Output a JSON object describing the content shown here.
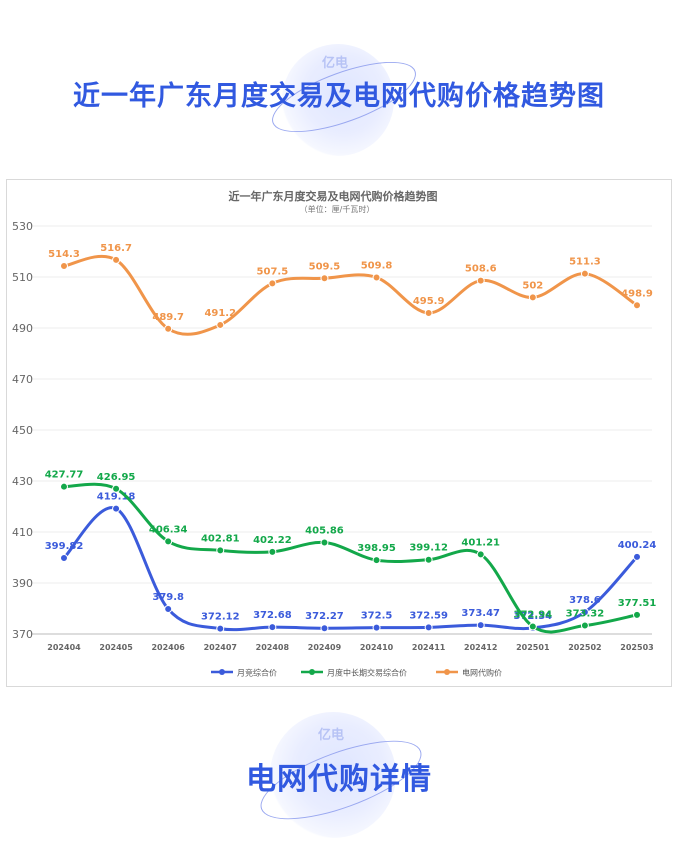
{
  "page": {
    "main_title": "近一年广东月度交易及电网代购价格趋势图",
    "section_title": "电网代购详情",
    "logo_text": "亿电"
  },
  "chart_data": {
    "type": "line",
    "title": "近一年广东月度交易及电网代购价格趋势图",
    "subtitle": "（单位：厘/千瓦时）",
    "categories": [
      "202404",
      "202405",
      "202406",
      "202407",
      "202408",
      "202409",
      "202410",
      "202411",
      "202412",
      "202501",
      "202502",
      "202503"
    ],
    "ylim": [
      370,
      530
    ],
    "yticks": [
      370,
      390,
      410,
      430,
      450,
      470,
      490,
      510,
      530
    ],
    "grid": true,
    "legend_position": "bottom",
    "series": [
      {
        "name": "月竞综合价",
        "color": "#3b5bdb",
        "values": [
          399.82,
          419.18,
          379.8,
          372.12,
          372.68,
          372.27,
          372.5,
          372.59,
          373.47,
          372.34,
          378.6,
          400.24
        ]
      },
      {
        "name": "月度中长期交易综合价",
        "color": "#13a84a",
        "values": [
          427.77,
          426.95,
          406.34,
          402.81,
          402.22,
          405.86,
          398.95,
          399.12,
          401.21,
          372.94,
          373.32,
          377.51
        ]
      },
      {
        "name": "电网代购价",
        "color": "#f0954a",
        "values": [
          514.3,
          516.7,
          489.7,
          491.2,
          507.5,
          509.5,
          509.8,
          495.9,
          508.6,
          502,
          511.3,
          498.9
        ]
      }
    ]
  }
}
